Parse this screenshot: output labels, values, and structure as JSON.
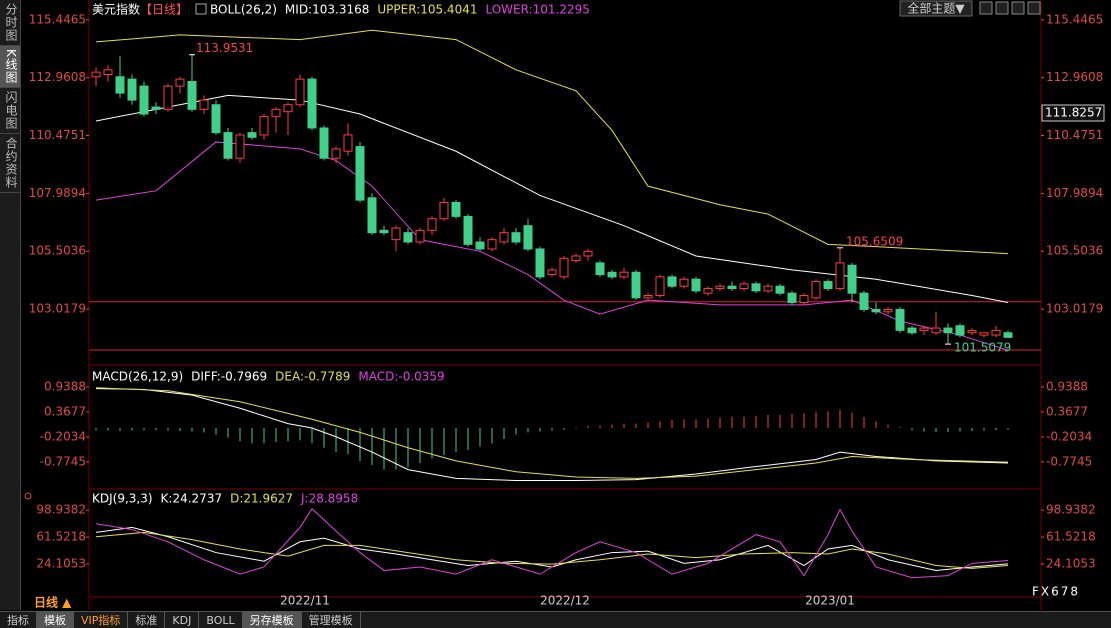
{
  "sidebar": [
    "分时图",
    "K线图",
    "闪电图",
    "合约资料"
  ],
  "header": {
    "symbol": "美元指数",
    "period": "【日线】"
  },
  "theme_button": "全部主题▼",
  "price_box": "111.8257",
  "annotations": [
    "113.9531",
    "105.6509",
    "101.5079"
  ],
  "period_label": "日线 ▲",
  "x_labels": [
    "2022/11",
    "2022/12",
    "2023/01"
  ],
  "tabs": [
    "指标",
    "模板",
    "VIP指标",
    "标准",
    "KDJ",
    "BOLL",
    "另存模板",
    "管理模板"
  ],
  "watermark": "FX678",
  "chart_data": [
    {
      "type": "candlestick",
      "title": "BOLL(26,2)",
      "ylim": [
        101,
        116
      ],
      "yticks": [
        115.4465,
        112.9608,
        110.4751,
        107.9894,
        105.5036,
        103.0179
      ],
      "up_color": "#ff3b3b",
      "down_color": "#3fd08a",
      "levels": [
        103.33,
        101.26
      ],
      "level_color": "#e02020",
      "candles": [
        [
          113.0,
          113.4,
          112.6,
          113.2
        ],
        [
          113.1,
          113.5,
          112.8,
          113.3
        ],
        [
          113.0,
          113.9,
          112.1,
          112.3
        ],
        [
          112.9,
          113.1,
          111.8,
          112.0
        ],
        [
          112.6,
          112.8,
          111.3,
          111.4
        ],
        [
          111.7,
          111.9,
          111.4,
          111.6
        ],
        [
          111.6,
          112.7,
          111.5,
          112.6
        ],
        [
          112.6,
          113.0,
          112.3,
          112.9
        ],
        [
          112.8,
          113.95,
          111.5,
          111.6
        ],
        [
          111.6,
          112.2,
          111.4,
          112.0
        ],
        [
          111.8,
          112.0,
          110.5,
          110.6
        ],
        [
          110.6,
          110.8,
          109.4,
          109.5
        ],
        [
          109.5,
          110.6,
          109.3,
          110.5
        ],
        [
          110.6,
          110.8,
          110.3,
          110.4
        ],
        [
          110.5,
          111.4,
          110.3,
          111.3
        ],
        [
          111.3,
          111.7,
          110.6,
          111.6
        ],
        [
          111.5,
          111.9,
          110.5,
          111.8
        ],
        [
          111.8,
          113.1,
          111.7,
          112.9
        ],
        [
          112.9,
          113.0,
          110.7,
          110.8
        ],
        [
          110.8,
          110.9,
          109.4,
          109.5
        ],
        [
          109.5,
          110.0,
          109.3,
          109.9
        ],
        [
          109.8,
          111.0,
          109.6,
          110.5
        ],
        [
          110.0,
          110.2,
          107.6,
          107.7
        ],
        [
          107.8,
          108.0,
          106.2,
          106.3
        ],
        [
          106.4,
          106.6,
          106.2,
          106.3
        ],
        [
          106.0,
          106.6,
          105.5,
          106.5
        ],
        [
          106.3,
          106.5,
          105.8,
          105.9
        ],
        [
          105.9,
          106.5,
          105.8,
          106.4
        ],
        [
          106.4,
          107.0,
          106.2,
          106.9
        ],
        [
          106.9,
          107.8,
          106.8,
          107.6
        ],
        [
          107.6,
          107.7,
          106.9,
          107.0
        ],
        [
          107.0,
          107.1,
          105.7,
          105.8
        ],
        [
          105.9,
          106.1,
          105.5,
          105.6
        ],
        [
          105.6,
          106.1,
          105.5,
          106.0
        ],
        [
          105.9,
          106.5,
          105.8,
          106.3
        ],
        [
          106.3,
          106.5,
          105.8,
          105.9
        ],
        [
          106.6,
          106.9,
          105.5,
          105.6
        ],
        [
          105.6,
          105.7,
          104.3,
          104.4
        ],
        [
          104.5,
          104.8,
          104.4,
          104.7
        ],
        [
          104.4,
          105.3,
          104.3,
          105.2
        ],
        [
          105.1,
          105.4,
          105.0,
          105.3
        ],
        [
          105.3,
          105.6,
          105.1,
          105.5
        ],
        [
          105.0,
          105.1,
          104.4,
          104.5
        ],
        [
          104.6,
          104.7,
          104.3,
          104.4
        ],
        [
          104.4,
          104.8,
          104.3,
          104.6
        ],
        [
          104.6,
          104.7,
          103.4,
          103.5
        ],
        [
          103.5,
          103.7,
          103.4,
          103.6
        ],
        [
          103.6,
          104.5,
          103.5,
          104.4
        ],
        [
          104.4,
          104.5,
          103.9,
          104.0
        ],
        [
          104.0,
          104.4,
          103.9,
          104.3
        ],
        [
          104.3,
          104.4,
          103.7,
          103.8
        ],
        [
          103.7,
          104.0,
          103.6,
          103.9
        ],
        [
          103.9,
          104.1,
          103.8,
          104.0
        ],
        [
          104.0,
          104.2,
          103.8,
          103.9
        ],
        [
          103.9,
          104.2,
          103.8,
          104.1
        ],
        [
          104.1,
          104.2,
          103.7,
          103.8
        ],
        [
          103.8,
          104.1,
          103.7,
          104.0
        ],
        [
          104.0,
          104.1,
          103.6,
          103.7
        ],
        [
          103.7,
          103.8,
          103.2,
          103.3
        ],
        [
          103.3,
          103.7,
          103.2,
          103.6
        ],
        [
          103.5,
          104.3,
          103.4,
          104.2
        ],
        [
          104.2,
          104.3,
          103.8,
          103.9
        ],
        [
          103.9,
          105.65,
          103.8,
          105.0
        ],
        [
          104.9,
          105.0,
          103.3,
          103.7
        ],
        [
          103.7,
          103.8,
          102.9,
          103.0
        ],
        [
          103.0,
          103.3,
          102.8,
          102.9
        ],
        [
          102.9,
          103.1,
          102.8,
          103.0
        ],
        [
          103.0,
          103.1,
          102.0,
          102.1
        ],
        [
          102.2,
          102.3,
          101.9,
          102.0
        ],
        [
          102.1,
          102.3,
          101.9,
          102.2
        ],
        [
          102.0,
          102.9,
          101.9,
          102.2
        ],
        [
          102.2,
          102.4,
          101.51,
          102.0
        ],
        [
          102.3,
          102.4,
          101.8,
          101.9
        ],
        [
          102.0,
          102.2,
          101.9,
          102.1
        ],
        [
          101.9,
          102.0,
          101.8,
          102.0
        ],
        [
          101.9,
          102.3,
          101.8,
          102.1
        ],
        [
          102.0,
          102.1,
          101.8,
          101.8
        ]
      ],
      "series": [
        {
          "name": "MID:103.3168",
          "color": "#ffffff",
          "x": [
            0,
            11,
            17,
            22,
            30,
            37,
            44,
            50,
            58,
            65,
            73,
            76
          ],
          "values": [
            111.1,
            112.2,
            112.0,
            111.4,
            109.8,
            107.9,
            106.6,
            105.3,
            104.7,
            104.3,
            103.6,
            103.3
          ]
        },
        {
          "name": "UPPER:105.4041",
          "color": "#e8e040",
          "x": [
            0,
            7,
            17,
            23,
            30,
            35,
            40,
            43,
            46,
            52,
            56,
            61,
            65,
            76
          ],
          "values": [
            114.5,
            114.8,
            114.6,
            115.0,
            114.6,
            113.3,
            112.4,
            110.7,
            108.3,
            107.5,
            107.1,
            105.8,
            105.7,
            105.4
          ]
        },
        {
          "name": "LOWER:101.2295",
          "color": "#e040e0",
          "x": [
            0,
            5,
            10,
            17,
            20,
            23,
            27,
            32,
            36,
            39,
            42,
            46,
            52,
            59,
            63,
            67,
            72,
            76
          ],
          "values": [
            107.7,
            108.1,
            110.2,
            109.9,
            109.4,
            108.3,
            106.0,
            105.5,
            104.5,
            103.4,
            102.8,
            103.4,
            103.2,
            103.2,
            103.4,
            102.5,
            101.9,
            101.25
          ]
        }
      ]
    },
    {
      "type": "macd",
      "title": "MACD(26,12,9)",
      "ylim": [
        -1.37,
        1.37
      ],
      "yticks": [
        0.9388,
        0.3677,
        -0.2034,
        -0.7745
      ],
      "histogram": {
        "name": "MACD:-0.0359",
        "color": "#e040e0",
        "up_color": "#ff3b3b",
        "down_color": "#3fd08a",
        "values": [
          -0.05,
          -0.06,
          -0.07,
          -0.06,
          -0.05,
          -0.05,
          -0.06,
          -0.07,
          -0.08,
          -0.1,
          -0.15,
          -0.22,
          -0.3,
          -0.35,
          -0.35,
          -0.32,
          -0.3,
          -0.28,
          -0.35,
          -0.45,
          -0.55,
          -0.6,
          -0.75,
          -0.85,
          -0.95,
          -0.95,
          -0.9,
          -0.8,
          -0.7,
          -0.62,
          -0.55,
          -0.5,
          -0.42,
          -0.35,
          -0.25,
          -0.15,
          -0.1,
          -0.08,
          -0.06,
          -0.04,
          0.02,
          0.05,
          0.06,
          0.08,
          0.1,
          0.1,
          0.12,
          0.15,
          0.18,
          0.2,
          0.2,
          0.22,
          0.24,
          0.26,
          0.26,
          0.28,
          0.3,
          0.3,
          0.32,
          0.34,
          0.36,
          0.38,
          0.42,
          0.35,
          0.25,
          0.15,
          0.08,
          0.02,
          -0.05,
          -0.08,
          -0.09,
          -0.09,
          -0.08,
          -0.07,
          -0.06,
          -0.05,
          -0.04
        ]
      },
      "series": [
        {
          "name": "DIFF:-0.7969",
          "color": "#ffffff",
          "x": [
            0,
            4,
            8,
            12,
            16,
            18,
            20,
            23,
            26,
            30,
            35,
            40,
            45,
            50,
            55,
            60,
            62,
            65,
            70,
            76
          ],
          "values": [
            0.9,
            0.88,
            0.75,
            0.45,
            0.1,
            0.0,
            -0.2,
            -0.55,
            -0.95,
            -1.15,
            -1.2,
            -1.2,
            -1.18,
            -1.05,
            -0.88,
            -0.72,
            -0.55,
            -0.65,
            -0.75,
            -0.8
          ]
        },
        {
          "name": "DEA:-0.7789",
          "color": "#e8e040",
          "x": [
            0,
            6,
            12,
            18,
            22,
            26,
            30,
            35,
            40,
            45,
            50,
            55,
            60,
            63,
            68,
            76
          ],
          "values": [
            0.92,
            0.85,
            0.6,
            0.2,
            -0.1,
            -0.45,
            -0.75,
            -1.0,
            -1.12,
            -1.15,
            -1.1,
            -0.95,
            -0.8,
            -0.65,
            -0.72,
            -0.78
          ]
        }
      ]
    },
    {
      "type": "kdj",
      "title": "KDJ(9,3,3)",
      "ylim": [
        -19,
        127
      ],
      "yticks": [
        98.9382,
        61.5218,
        24.1053
      ],
      "series": [
        {
          "name": "K:24.2737",
          "color": "#ffffff",
          "x": [
            0,
            3,
            6,
            10,
            14,
            17,
            19,
            22,
            25,
            28,
            31,
            35,
            38,
            40,
            43,
            46,
            49,
            52,
            56,
            59,
            61,
            63,
            66,
            70,
            73,
            76
          ],
          "values": [
            68,
            75,
            62,
            40,
            28,
            55,
            60,
            45,
            38,
            30,
            22,
            28,
            20,
            30,
            40,
            42,
            25,
            30,
            50,
            22,
            45,
            50,
            30,
            15,
            20,
            24.27
          ]
        },
        {
          "name": "D:21.9627",
          "color": "#e8e040",
          "x": [
            0,
            4,
            8,
            12,
            16,
            19,
            22,
            26,
            30,
            34,
            38,
            42,
            46,
            50,
            54,
            58,
            61,
            63,
            66,
            70,
            73,
            76
          ],
          "values": [
            62,
            68,
            58,
            45,
            35,
            50,
            50,
            40,
            30,
            25,
            24,
            30,
            38,
            33,
            38,
            40,
            38,
            45,
            38,
            22,
            18,
            21.96
          ]
        },
        {
          "name": "J:28.8958",
          "color": "#e040e0",
          "x": [
            0,
            3,
            6,
            9,
            12,
            14,
            17,
            18,
            20,
            22,
            24,
            27,
            30,
            33,
            37,
            40,
            42,
            45,
            48,
            51,
            55,
            57,
            59,
            61,
            62,
            63,
            65,
            68,
            71,
            73,
            76
          ],
          "values": [
            80,
            72,
            55,
            30,
            10,
            20,
            75,
            101,
            70,
            40,
            15,
            20,
            10,
            30,
            10,
            40,
            55,
            40,
            10,
            25,
            65,
            55,
            8,
            65,
            100,
            70,
            20,
            5,
            8,
            25,
            28.9
          ]
        }
      ]
    }
  ]
}
